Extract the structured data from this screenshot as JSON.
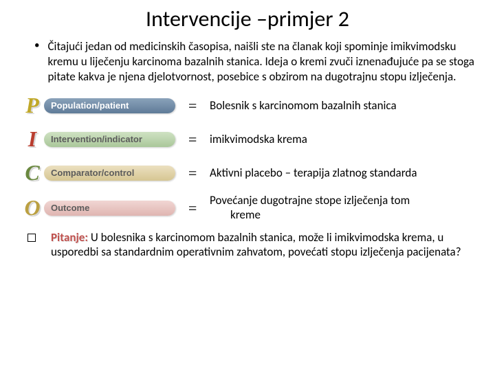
{
  "title": "Intervencije –primjer 2",
  "intro": "Čitajući jedan od medicinskih časopisa, naišli ste na članak koji spominje imikvimodsku kremu u liječenju karcinoma bazalnih stanica. Ideja o kremi zvuči iznenađujuće pa se stoga pitate kakva je njena djelotvornost, posebice s obzirom na dugotrajnu stopu izlječenja.",
  "pico": {
    "P": {
      "letter": "P",
      "label": "Population/patient",
      "letter_color": "#c0a828",
      "pill_bg": "#6f8aa5",
      "label_color": "#ffffff",
      "desc": "Bolesnik s karcinomom bazalnih stanica"
    },
    "I": {
      "letter": "I",
      "label": "Intervention/indicator",
      "letter_color": "#b93d2f",
      "pill_bg": "#bdd5ae",
      "label_color": "#5b5b5b",
      "desc": "imikvimodska krema"
    },
    "C": {
      "letter": "C",
      "label": "Comparator/control",
      "letter_color": "#6a8840",
      "pill_bg": "#e3d4ab",
      "label_color": "#5b5b5b",
      "desc": "Aktivni placebo – terapija zlatnog standarda"
    },
    "O": {
      "letter": "O",
      "label": "Outcome",
      "letter_color": "#bba042",
      "pill_bg": "#e8c6c3",
      "label_color": "#5b5b5b",
      "desc_line1": "Povećanje dugotrajne stope izlječenja tom",
      "desc_line2": "kreme"
    }
  },
  "question": {
    "prefix": "Pitanje:",
    "body": "  U bolesnika s karcinomom bazalnih stanica, može li imikvimodska krema, u usporedbi sa standardnim operativnim zahvatom, povećati stopu izlječenja pacijenata?"
  }
}
